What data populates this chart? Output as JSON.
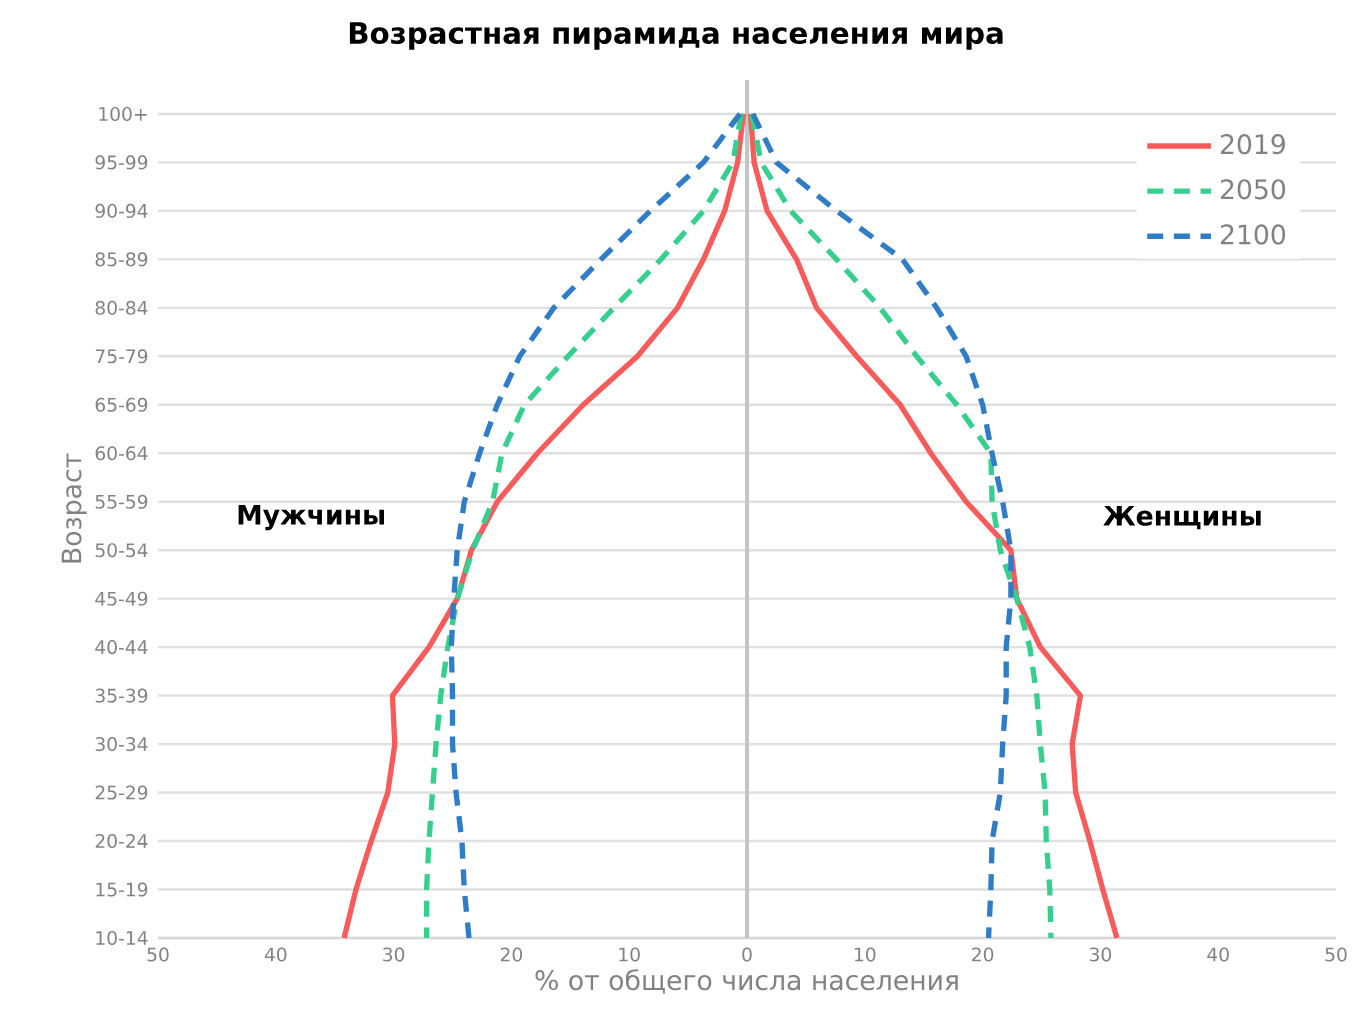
{
  "chart_data": {
    "type": "line",
    "orientation": "horizontal",
    "title": "Возрастная пирамида населения мира",
    "xlabel": "% от общего числа населения",
    "ylabel": "Возраст",
    "categories": [
      "100+",
      "95-99",
      "90-94",
      "85-89",
      "80-84",
      "75-79",
      "65-69",
      "60-64",
      "55-59",
      "50-54",
      "45-49",
      "40-44",
      "35-39",
      "30-34",
      "25-29",
      "20-24",
      "15-19",
      "10-14"
    ],
    "series": [
      {
        "name": "2019",
        "color": "#f95a5a",
        "line_style": "solid",
        "values": [
          -0.3,
          -0.8,
          -1.9,
          -3.7,
          -5.9,
          -9.3,
          -13.9,
          -17.8,
          -21.2,
          -23.4,
          -24.6,
          -27,
          -30.1,
          -29.9,
          -30.5,
          -31.9,
          -33.2,
          -34.2
        ]
      },
      {
        "color": "#f95a5a",
        "line_style": "solid",
        "values": [
          0.3,
          0.6,
          1.7,
          4.2,
          5.9,
          9.3,
          13,
          15.6,
          18.6,
          22.4,
          22.9,
          24.9,
          28.3,
          27.6,
          27.9,
          29.1,
          30.2,
          31.4
        ]
      },
      {
        "name": "2050",
        "color": "#36d08e",
        "line_style": "dashed",
        "values": [
          -0.5,
          -1.2,
          -3.7,
          -7.3,
          -11.3,
          -15.2,
          -18.9,
          -20.8,
          -21.6,
          -23.3,
          -24.6,
          -25.4,
          -26,
          -26.4,
          -26.7,
          -27,
          -27.2,
          -27.2
        ]
      },
      {
        "color": "#36d08e",
        "line_style": "dashed",
        "values": [
          0.4,
          1.2,
          3.7,
          7.6,
          11.3,
          14.4,
          17.8,
          20.7,
          20.8,
          21.5,
          22.9,
          24,
          24.6,
          24.9,
          25.3,
          25.4,
          25.7,
          25.8
        ]
      },
      {
        "name": "2100",
        "color": "#2f7dc6",
        "line_style": "dashed",
        "values": [
          -0.6,
          -3.7,
          -8.2,
          -12.4,
          -16.4,
          -19.3,
          -21.2,
          -22.7,
          -24,
          -24.6,
          -24.9,
          -25.1,
          -25,
          -25,
          -24.7,
          -24.2,
          -24,
          -23.6
        ]
      },
      {
        "color": "#2f7dc6",
        "line_style": "dashed",
        "values": [
          0.5,
          2.5,
          7.6,
          13.2,
          16.1,
          18.6,
          20,
          20.8,
          21.7,
          22.4,
          22.4,
          22,
          22,
          21.7,
          21.5,
          20.8,
          20.7,
          20.5
        ]
      }
    ],
    "xlim": [
      -50,
      50
    ],
    "xticks": [
      {
        "value": -50,
        "label": "50"
      },
      {
        "value": -40,
        "label": "40"
      },
      {
        "value": -30,
        "label": "30"
      },
      {
        "value": -20,
        "label": "20"
      },
      {
        "value": -10,
        "label": "10"
      },
      0,
      10,
      20,
      30,
      40,
      50
    ],
    "grid": "y",
    "legend": "top right",
    "ref_lines": [
      {
        "axis": "x",
        "value": 0,
        "color": "#c4c4c4"
      }
    ],
    "annotations": [
      "Мужчины",
      "Женщины"
    ]
  }
}
